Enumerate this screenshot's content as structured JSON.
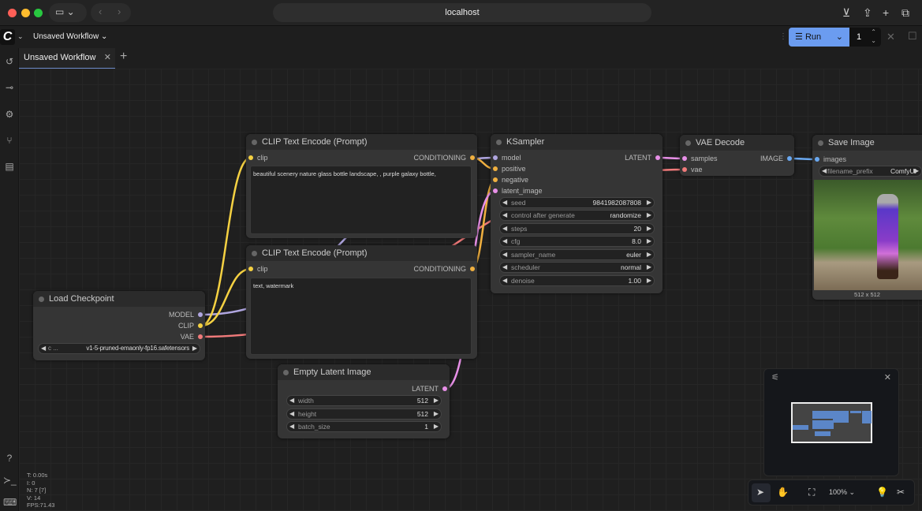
{
  "browser": {
    "url": "localhost"
  },
  "app": {
    "workflow_menu": "Unsaved Workflow",
    "run_label": "Run",
    "queue_count": "1",
    "accent": "#6b9cf0"
  },
  "tabs": [
    {
      "label": "Unsaved Workflow"
    }
  ],
  "nodes": {
    "clip1": {
      "title": "CLIP Text Encode (Prompt)",
      "input": "clip",
      "output": "CONDITIONING",
      "text": "beautiful scenery nature glass bottle landscape, , purple galaxy bottle,"
    },
    "clip2": {
      "title": "CLIP Text Encode (Prompt)",
      "input": "clip",
      "output": "CONDITIONING",
      "text": "text, watermark"
    },
    "ksampler": {
      "title": "KSampler",
      "inputs": [
        "model",
        "positive",
        "negative",
        "latent_image"
      ],
      "output": "LATENT",
      "widgets": [
        {
          "label": "seed",
          "value": "9841982087808"
        },
        {
          "label": "control after generate",
          "value": "randomize"
        },
        {
          "label": "steps",
          "value": "20"
        },
        {
          "label": "cfg",
          "value": "8.0"
        },
        {
          "label": "sampler_name",
          "value": "euler"
        },
        {
          "label": "scheduler",
          "value": "normal"
        },
        {
          "label": "denoise",
          "value": "1.00"
        }
      ]
    },
    "vae": {
      "title": "VAE Decode",
      "inputs": [
        "samples",
        "vae"
      ],
      "output": "IMAGE"
    },
    "save": {
      "title": "Save Image",
      "input": "images",
      "widget_label": "filename_prefix",
      "widget_value": "ComfyUI",
      "caption": "512 x 512"
    },
    "ckpt": {
      "title": "Load Checkpoint",
      "outputs": [
        "MODEL",
        "CLIP",
        "VAE"
      ],
      "widget_label": "c ...",
      "widget_value": "v1-5-pruned-emaonly-fp16.safetensors"
    },
    "latent": {
      "title": "Empty Latent Image",
      "output": "LATENT",
      "widgets": [
        {
          "label": "width",
          "value": "512"
        },
        {
          "label": "height",
          "value": "512"
        },
        {
          "label": "batch_size",
          "value": "1"
        }
      ]
    }
  },
  "zoom": "100%",
  "stats": [
    "T: 0.00s",
    "I: 0",
    "N: 7 [7]",
    "V: 14",
    "FPS:71.43"
  ]
}
